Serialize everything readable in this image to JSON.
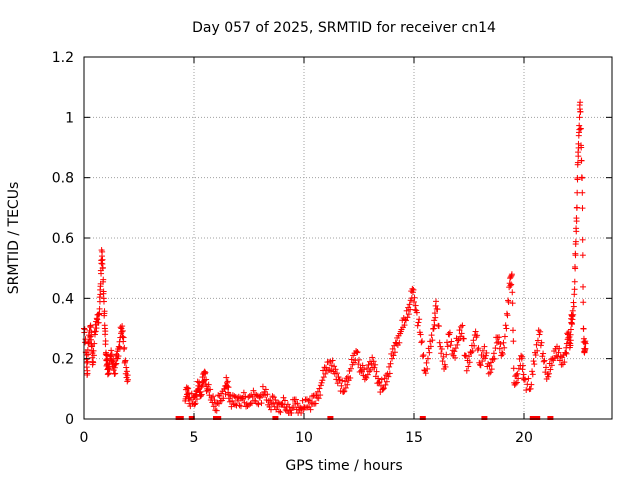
{
  "chart_data": {
    "type": "scatter",
    "title": "Day 057 of 2025, SRMTID for receiver cn14",
    "xlabel": "GPS time / hours",
    "ylabel": "SRMTID / TECUs",
    "xlim": [
      0,
      24
    ],
    "ylim": [
      0,
      1.2
    ],
    "x_ticks": [
      0,
      5,
      10,
      15,
      20
    ],
    "y_ticks": [
      0,
      0.2,
      0.4,
      0.6,
      0.8,
      1,
      1.2
    ],
    "y_tick_labels": [
      "0",
      "0.2",
      "0.4",
      "0.6",
      "0.8",
      "1",
      "1.2"
    ],
    "grid": true,
    "marker": "plus",
    "series": [
      {
        "name": "SRMTID",
        "color": "#ff0000",
        "points": [
          [
            0.0,
            0.3
          ],
          [
            0.1,
            0.22
          ],
          [
            0.15,
            0.16
          ],
          [
            0.2,
            0.25
          ],
          [
            0.3,
            0.31
          ],
          [
            0.35,
            0.24
          ],
          [
            0.4,
            0.19
          ],
          [
            0.5,
            0.28
          ],
          [
            0.6,
            0.33
          ],
          [
            0.7,
            0.35
          ],
          [
            0.75,
            0.44
          ],
          [
            0.8,
            0.56
          ],
          [
            0.85,
            0.5
          ],
          [
            0.9,
            0.4
          ],
          [
            0.95,
            0.3
          ],
          [
            1.0,
            0.22
          ],
          [
            1.05,
            0.18
          ],
          [
            1.1,
            0.15
          ],
          [
            1.2,
            0.21
          ],
          [
            1.3,
            0.19
          ],
          [
            1.4,
            0.17
          ],
          [
            1.5,
            0.2
          ],
          [
            1.6,
            0.24
          ],
          [
            1.7,
            0.3
          ],
          [
            1.8,
            0.27
          ],
          [
            1.9,
            0.15
          ],
          [
            2.0,
            0.13
          ],
          [
            4.6,
            0.06
          ],
          [
            4.7,
            0.1
          ],
          [
            4.8,
            0.07
          ],
          [
            5.0,
            0.05
          ],
          [
            5.1,
            0.08
          ],
          [
            5.2,
            0.11
          ],
          [
            5.3,
            0.09
          ],
          [
            5.4,
            0.12
          ],
          [
            5.5,
            0.15
          ],
          [
            5.6,
            0.1
          ],
          [
            5.8,
            0.07
          ],
          [
            6.0,
            0.05
          ],
          [
            6.2,
            0.06
          ],
          [
            6.4,
            0.1
          ],
          [
            6.5,
            0.12
          ],
          [
            6.6,
            0.08
          ],
          [
            6.8,
            0.05
          ],
          [
            7.0,
            0.06
          ],
          [
            7.2,
            0.07
          ],
          [
            7.4,
            0.05
          ],
          [
            7.6,
            0.08
          ],
          [
            7.8,
            0.06
          ],
          [
            8.0,
            0.07
          ],
          [
            8.2,
            0.09
          ],
          [
            8.4,
            0.06
          ],
          [
            8.6,
            0.05
          ],
          [
            8.8,
            0.04
          ],
          [
            9.0,
            0.05
          ],
          [
            9.2,
            0.04
          ],
          [
            9.4,
            0.03
          ],
          [
            9.6,
            0.05
          ],
          [
            9.8,
            0.03
          ],
          [
            10.0,
            0.04
          ],
          [
            10.2,
            0.06
          ],
          [
            10.4,
            0.05
          ],
          [
            10.6,
            0.07
          ],
          [
            10.8,
            0.12
          ],
          [
            11.0,
            0.17
          ],
          [
            11.2,
            0.19
          ],
          [
            11.4,
            0.15
          ],
          [
            11.6,
            0.13
          ],
          [
            11.8,
            0.09
          ],
          [
            12.0,
            0.14
          ],
          [
            12.2,
            0.18
          ],
          [
            12.4,
            0.22
          ],
          [
            12.6,
            0.16
          ],
          [
            12.8,
            0.14
          ],
          [
            13.0,
            0.19
          ],
          [
            13.2,
            0.17
          ],
          [
            13.4,
            0.12
          ],
          [
            13.6,
            0.1
          ],
          [
            13.8,
            0.15
          ],
          [
            14.0,
            0.2
          ],
          [
            14.2,
            0.25
          ],
          [
            14.4,
            0.29
          ],
          [
            14.6,
            0.33
          ],
          [
            14.8,
            0.38
          ],
          [
            14.95,
            0.42
          ],
          [
            15.1,
            0.36
          ],
          [
            15.3,
            0.28
          ],
          [
            15.5,
            0.16
          ],
          [
            15.7,
            0.22
          ],
          [
            15.9,
            0.3
          ],
          [
            16.0,
            0.39
          ],
          [
            16.2,
            0.24
          ],
          [
            16.4,
            0.18
          ],
          [
            16.6,
            0.28
          ],
          [
            16.8,
            0.21
          ],
          [
            17.0,
            0.26
          ],
          [
            17.2,
            0.31
          ],
          [
            17.4,
            0.16
          ],
          [
            17.6,
            0.22
          ],
          [
            17.8,
            0.29
          ],
          [
            18.0,
            0.18
          ],
          [
            18.2,
            0.24
          ],
          [
            18.4,
            0.15
          ],
          [
            18.6,
            0.2
          ],
          [
            18.8,
            0.27
          ],
          [
            19.0,
            0.22
          ],
          [
            19.2,
            0.3
          ],
          [
            19.35,
            0.45
          ],
          [
            19.45,
            0.48
          ],
          [
            19.55,
            0.12
          ],
          [
            19.7,
            0.15
          ],
          [
            19.9,
            0.2
          ],
          [
            20.0,
            0.13
          ],
          [
            20.3,
            0.1
          ],
          [
            20.5,
            0.22
          ],
          [
            20.7,
            0.28
          ],
          [
            20.9,
            0.19
          ],
          [
            21.1,
            0.14
          ],
          [
            21.3,
            0.2
          ],
          [
            21.5,
            0.24
          ],
          [
            21.7,
            0.18
          ],
          [
            21.9,
            0.22
          ],
          [
            22.0,
            0.28
          ],
          [
            22.1,
            0.25
          ],
          [
            22.15,
            0.32
          ],
          [
            22.2,
            0.33
          ],
          [
            22.3,
            0.43
          ],
          [
            22.35,
            0.58
          ],
          [
            22.4,
            0.7
          ],
          [
            22.45,
            0.85
          ],
          [
            22.5,
            0.95
          ],
          [
            22.55,
            1.05
          ],
          [
            22.6,
            0.9
          ],
          [
            22.65,
            0.75
          ],
          [
            22.7,
            0.3
          ],
          [
            22.75,
            0.22
          ],
          [
            22.8,
            0.25
          ]
        ]
      }
    ],
    "baseline_markers": [
      4.3,
      4.4,
      4.9,
      6.0,
      6.1,
      8.7,
      11.2,
      15.4,
      18.2,
      20.4,
      20.5,
      20.6,
      21.2
    ]
  }
}
